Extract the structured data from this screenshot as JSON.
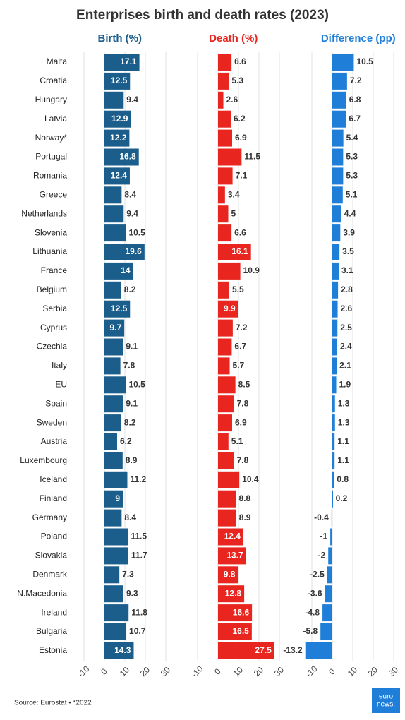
{
  "chart_data": {
    "type": "bar",
    "orientation": "horizontal",
    "title": "Enterprises birth and death rates (2023)",
    "source": "Source: Eurostat • *2022",
    "logo": [
      "euro",
      "news."
    ],
    "categories": [
      "Malta",
      "Croatia",
      "Hungary",
      "Latvia",
      "Norway*",
      "Portugal",
      "Romania",
      "Greece",
      "Netherlands",
      "Slovenia",
      "Lithuania",
      "France",
      "Belgium",
      "Serbia",
      "Cyprus",
      "Czechia",
      "Italy",
      "EU",
      "Spain",
      "Sweden",
      "Austria",
      "Luxembourg",
      "Iceland",
      "Finland",
      "Germany",
      "Poland",
      "Slovakia",
      "Denmark",
      "N.Macedonia",
      "Ireland",
      "Bulgaria",
      "Estonia"
    ],
    "series": [
      {
        "name": "Birth (%)",
        "color": "#1b5e8c",
        "values": [
          17.1,
          12.5,
          9.4,
          12.9,
          12.2,
          16.8,
          12.4,
          8.4,
          9.4,
          10.5,
          19.6,
          14,
          8.2,
          12.5,
          9.7,
          9.1,
          7.8,
          10.5,
          9.1,
          8.2,
          6.2,
          8.9,
          11.2,
          9,
          8.4,
          11.5,
          11.7,
          7.3,
          9.3,
          11.8,
          10.7,
          14.3
        ]
      },
      {
        "name": "Death (%)",
        "color": "#e8261f",
        "values": [
          6.6,
          5.3,
          2.6,
          6.2,
          6.9,
          11.5,
          7.1,
          3.4,
          5,
          6.6,
          16.1,
          10.9,
          5.5,
          9.9,
          7.2,
          6.7,
          5.7,
          8.5,
          7.8,
          6.9,
          5.1,
          7.8,
          10.4,
          8.8,
          8.9,
          12.4,
          13.7,
          9.8,
          12.8,
          16.6,
          16.5,
          27.5
        ]
      },
      {
        "name": "Difference (pp)",
        "color": "#1f7fd8",
        "values": [
          10.5,
          7.2,
          6.8,
          6.7,
          5.4,
          5.3,
          5.3,
          5.1,
          4.4,
          3.9,
          3.5,
          3.1,
          2.8,
          2.6,
          2.5,
          2.4,
          2.1,
          1.9,
          1.3,
          1.3,
          1.1,
          1.1,
          0.8,
          0.2,
          -0.4,
          -1,
          -2,
          -2.5,
          -3.6,
          -4.8,
          -5.8,
          -13.2
        ]
      }
    ],
    "xlim": [
      -15,
      30
    ],
    "xticks": [
      -10,
      0,
      10,
      20,
      30
    ],
    "grid": true
  }
}
